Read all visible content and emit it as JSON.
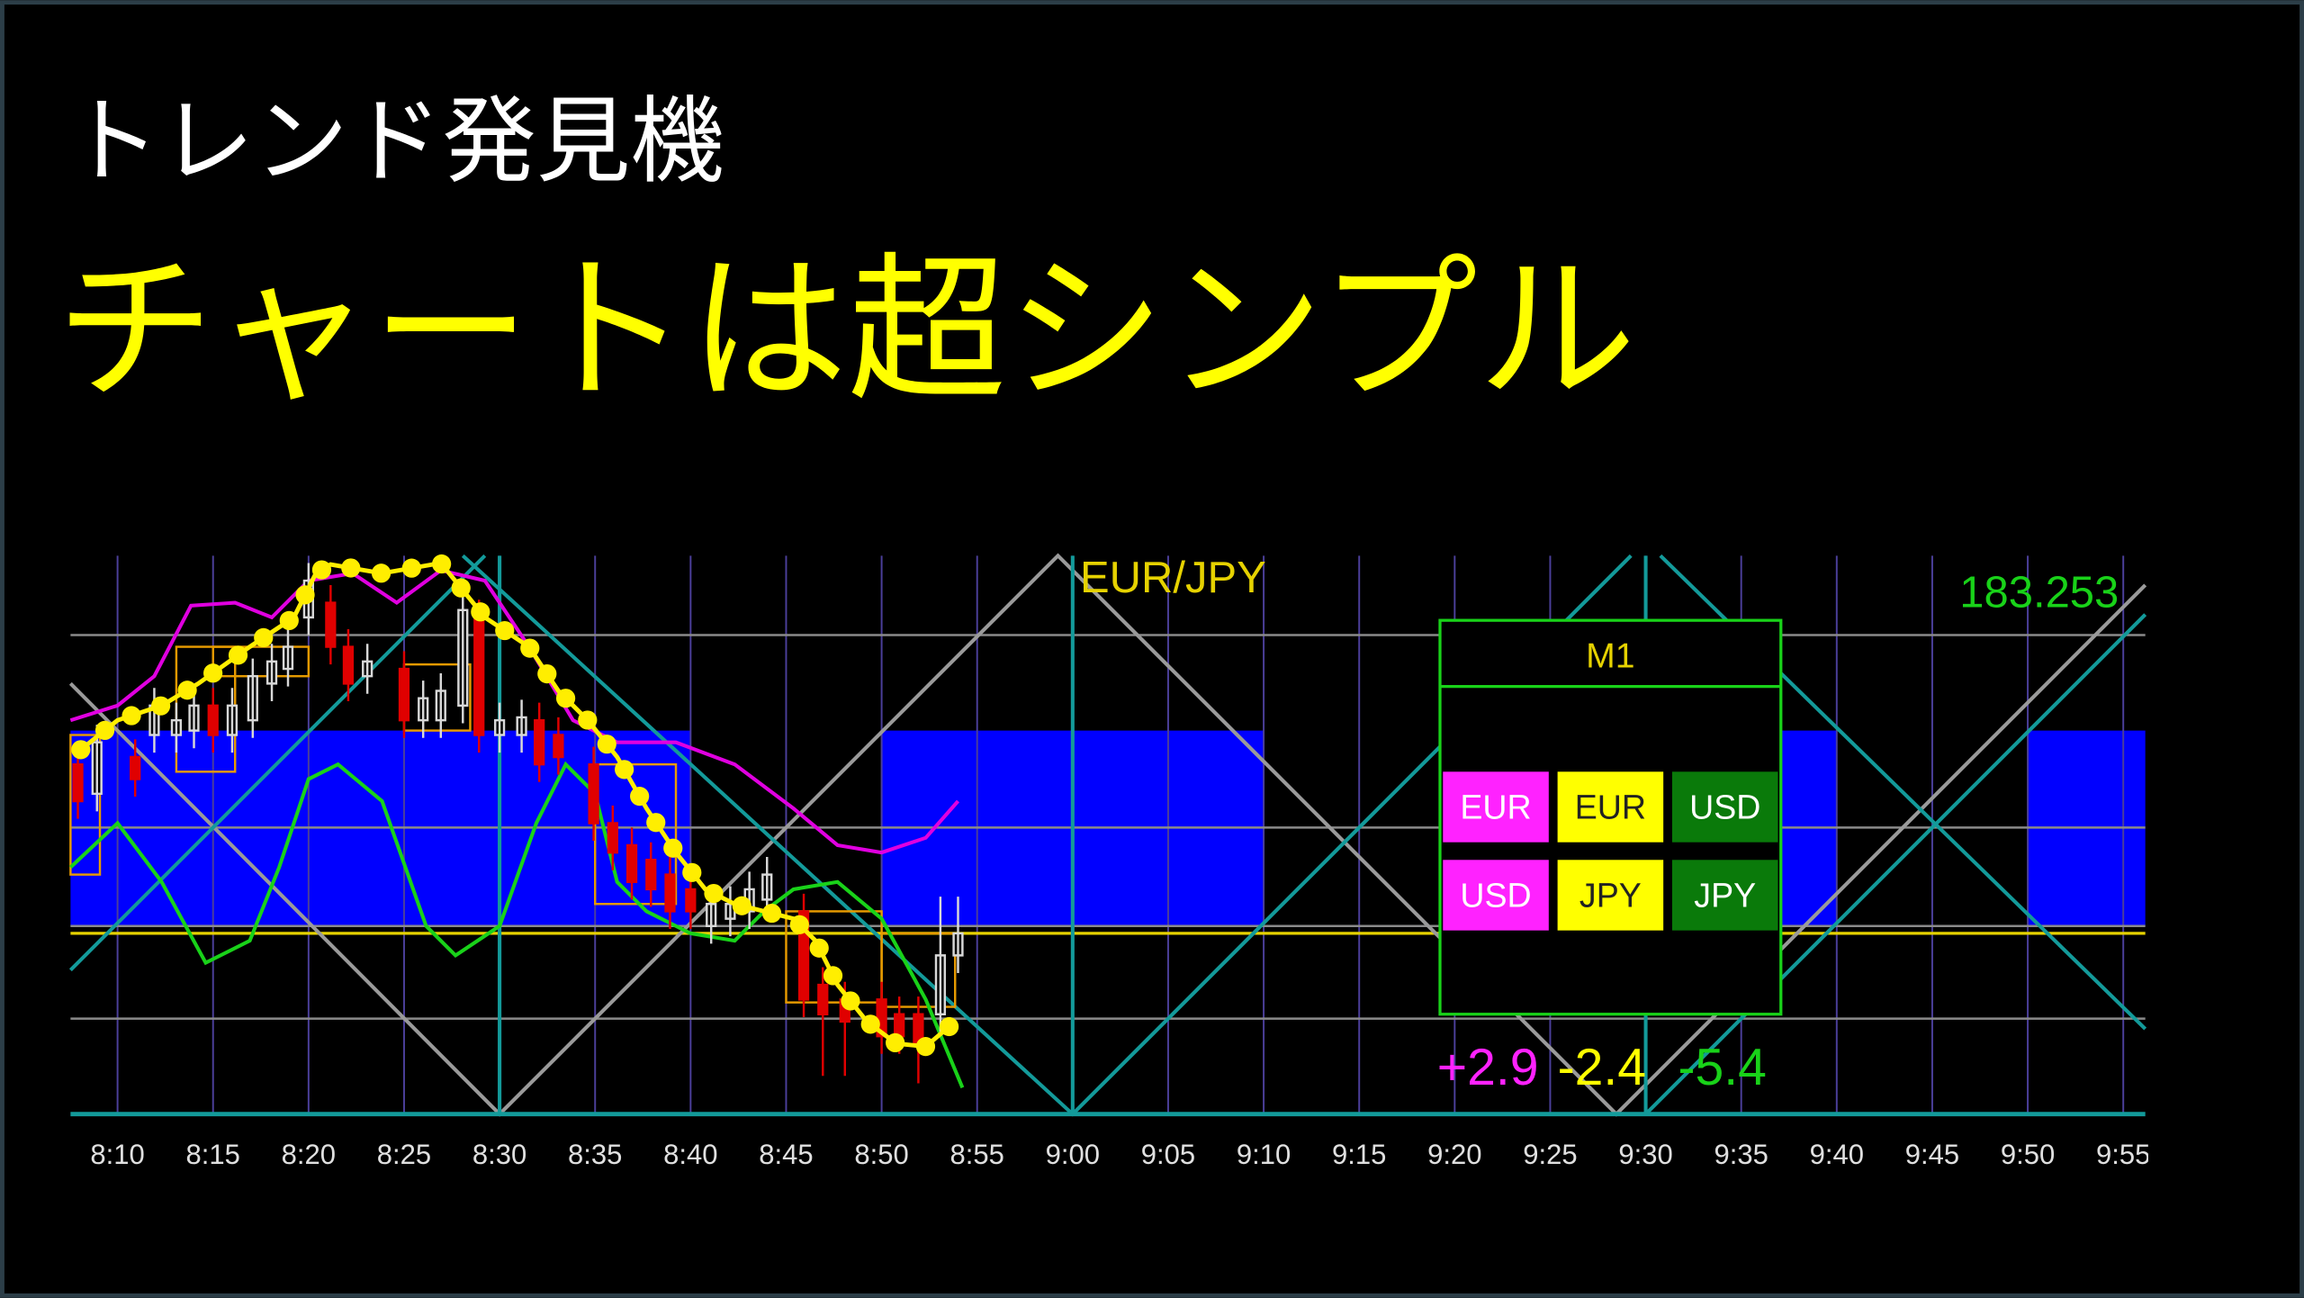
{
  "header": {
    "title": "トレンド発見機",
    "subtitle": "チャートは超シンプル"
  },
  "chart": {
    "symbol": "EUR/JPY",
    "price": "183.253",
    "time_labels": [
      "8:10",
      "8:15",
      "8:20",
      "8:25",
      "8:30",
      "8:35",
      "8:40",
      "8:45",
      "8:50",
      "8:55",
      "9:00",
      "9:05",
      "9:10",
      "9:15",
      "9:20",
      "9:25",
      "9:30",
      "9:35",
      "9:40",
      "9:45",
      "9:50",
      "9:55"
    ]
  },
  "panel": {
    "timeframe": "M1",
    "cells": [
      [
        "EUR",
        "EUR",
        "USD"
      ],
      [
        "USD",
        "JPY",
        "JPY"
      ]
    ],
    "strengths": [
      "+2.9",
      "-2.4",
      "-5.4"
    ]
  }
}
